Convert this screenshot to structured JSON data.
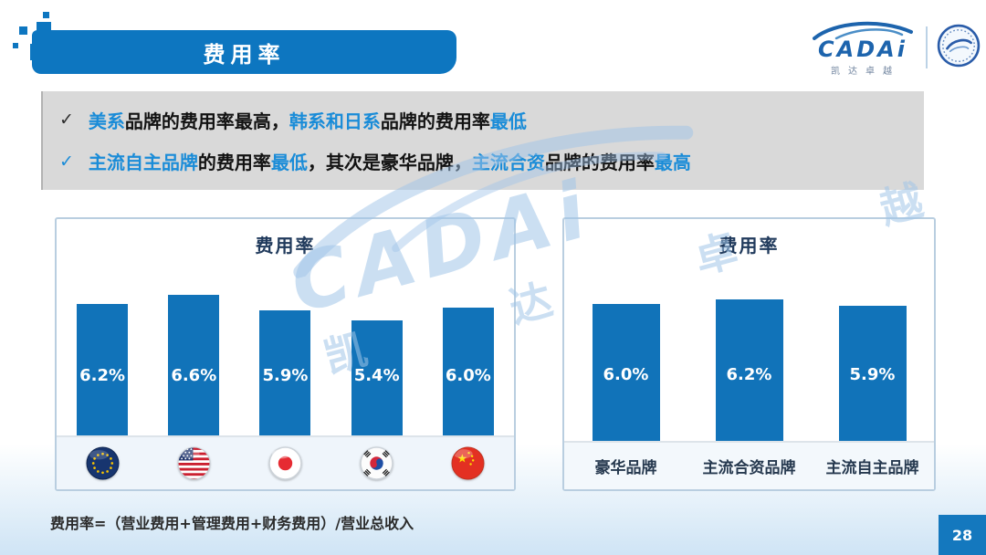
{
  "slide": {
    "title": "费用率",
    "footnote": "费用率=（营业费用+管理费用+财务费用）/营业总收入",
    "page_number": "28"
  },
  "logo": {
    "brand": "CADAi",
    "subtext": "凯达卓越"
  },
  "watermark": {
    "brand": "CADAi",
    "subtext": "凯 达 卓 越"
  },
  "callout": {
    "bullets": [
      {
        "check": "✓",
        "check_style": "dark",
        "segments": [
          {
            "text": "美系",
            "accent": true
          },
          {
            "text": "品牌的费用率最高，",
            "accent": false
          },
          {
            "text": "韩系和日系",
            "accent": true
          },
          {
            "text": "品牌的费用率",
            "accent": false
          },
          {
            "text": "最低",
            "accent": true
          }
        ]
      },
      {
        "check": "✓",
        "check_style": "accent",
        "segments": [
          {
            "text": "主流自主品牌",
            "accent": true
          },
          {
            "text": "的费用率",
            "accent": false
          },
          {
            "text": "最低",
            "accent": true
          },
          {
            "text": "，其次是豪华品牌，",
            "accent": false
          },
          {
            "text": "主流合资",
            "accent": true
          },
          {
            "text": "品牌的费用率",
            "accent": false
          },
          {
            "text": "最高",
            "accent": true
          }
        ]
      }
    ]
  },
  "colors": {
    "accent_blue": "#1a8cd8",
    "bar_blue": "#1173b9",
    "banner_blue": "#0d76c0",
    "navy": "#203a5c",
    "page_badge_blue": "#1478be"
  },
  "chart_data": [
    {
      "type": "bar",
      "title": "费用率",
      "unit": "%",
      "category_type": "flag-icons",
      "categories": [
        "eu-flag",
        "usa-flag",
        "japan-flag",
        "korea-flag",
        "china-flag"
      ],
      "values": [
        6.2,
        6.6,
        5.9,
        5.4,
        6.0
      ],
      "labels": [
        "6.2%",
        "6.6%",
        "5.9%",
        "5.4%",
        "6.0%"
      ],
      "xlabel": "",
      "ylabel": "",
      "ylim": [
        0,
        7
      ],
      "grid": false,
      "legend": false
    },
    {
      "type": "bar",
      "title": "费用率",
      "unit": "%",
      "category_type": "text",
      "categories": [
        "豪华品牌",
        "主流合资品牌",
        "主流自主品牌"
      ],
      "values": [
        6.0,
        6.2,
        5.9
      ],
      "labels": [
        "6.0%",
        "6.2%",
        "5.9%"
      ],
      "xlabel": "",
      "ylabel": "",
      "ylim": [
        0,
        7
      ],
      "grid": false,
      "legend": false
    }
  ]
}
